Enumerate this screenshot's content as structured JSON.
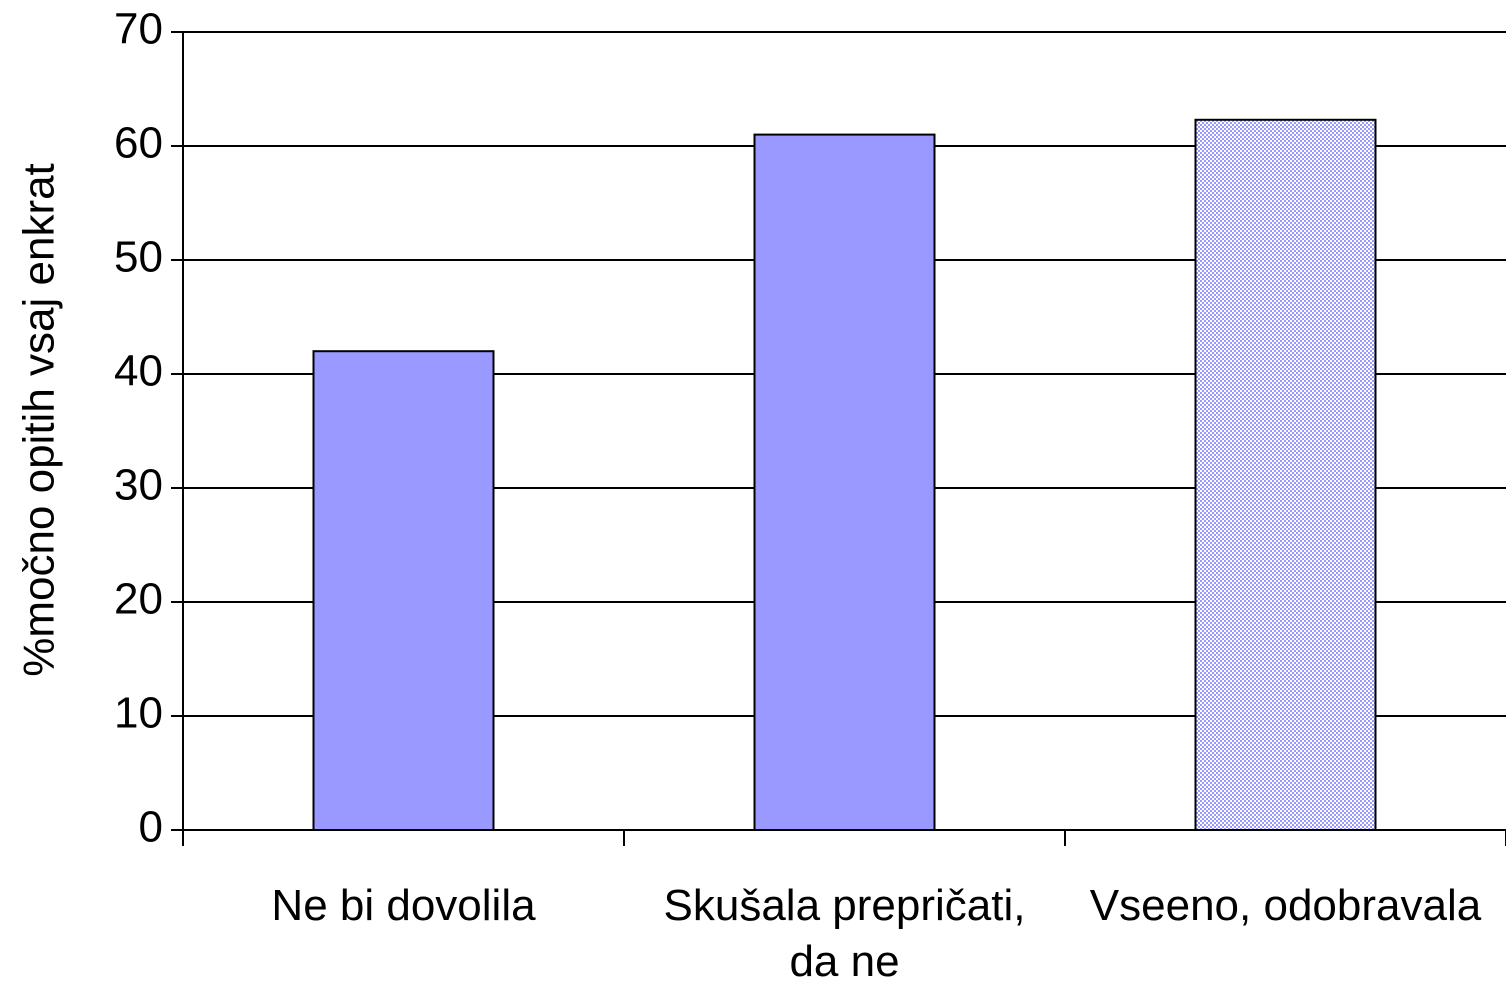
{
  "chart_data": {
    "type": "bar",
    "y_label": "%močno opitih vsaj enkrat",
    "categories": [
      "Ne bi dovolila",
      "Skušala prepričati, da ne",
      "Vseeno, odobravala"
    ],
    "values": [
      42,
      61,
      62.3
    ],
    "colors": [
      "#9999ff",
      "#9999ff",
      "#9999ff"
    ],
    "patterned": [
      false,
      false,
      true
    ],
    "ylim": [
      0,
      70
    ],
    "yticks": [
      0,
      10,
      20,
      30,
      40,
      50,
      60,
      70
    ],
    "grid": true
  }
}
